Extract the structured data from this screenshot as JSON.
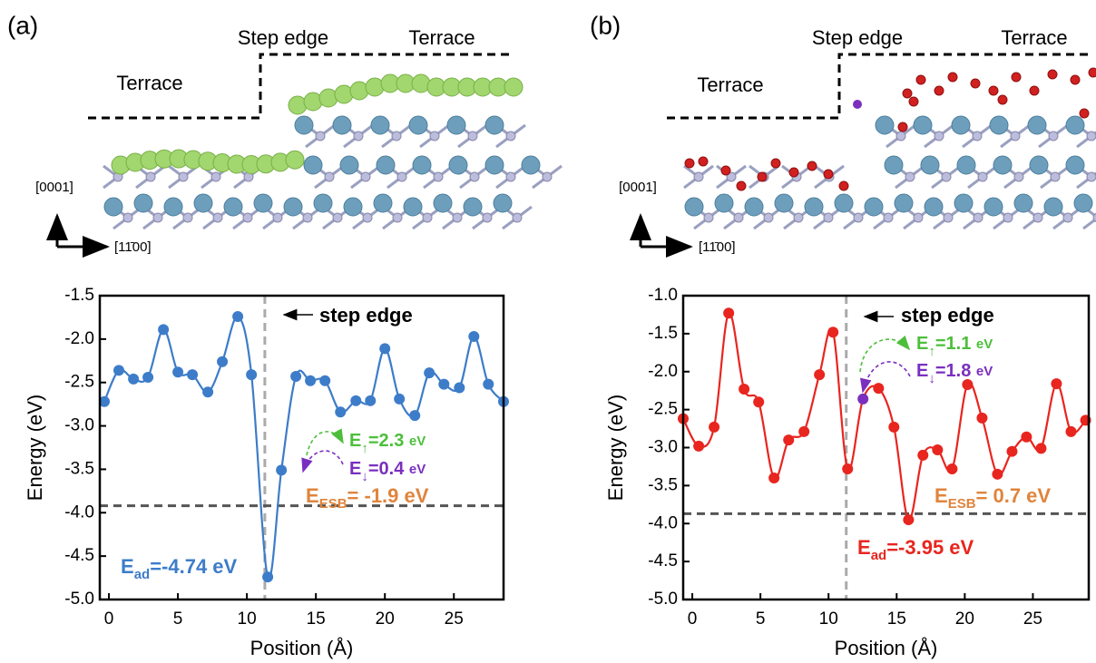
{
  "structure": [
    {
      "panel_label": "(a)",
      "terrace_low": "Terrace",
      "step": "Step edge",
      "terrace_high": "Terrace",
      "axis_up": "[0001]",
      "axis_right": "[11̄00]"
    },
    {
      "panel_label": "(b)",
      "terrace_low": "Terrace",
      "step": "Step edge",
      "terrace_high": "Terrace",
      "axis_up": "[0001]",
      "axis_right": "[11̄00]"
    }
  ],
  "chart_data": [
    {
      "type": "line",
      "xlabel": "Position (Å)",
      "ylabel": "Energy (eV)",
      "xlim": [
        -0.66,
        28.6
      ],
      "ylim": [
        -5,
        -1.5
      ],
      "xticks": [
        0,
        5,
        10,
        15,
        20,
        25
      ],
      "yticks": [
        {
          "value": -5,
          "label": "-5.0"
        },
        -4.5,
        {
          "value": -4,
          "label": "-4.0"
        },
        -3.5,
        {
          "value": -3,
          "label": "-3.0"
        },
        -2.5,
        {
          "value": -2,
          "label": "-2.0"
        },
        -1.5
      ],
      "series": [
        {
          "color": "#3d7cc9",
          "x": [
            -0.33,
            0.72,
            1.78,
            2.83,
            3.95,
            5.0,
            6.05,
            7.17,
            8.22,
            9.34,
            10.33,
            11.51,
            12.5,
            13.55,
            14.6,
            15.66,
            16.78,
            17.9,
            18.95,
            20.0,
            21.05,
            22.17,
            23.22,
            24.28,
            25.4,
            26.45,
            27.5,
            28.6
          ],
          "values": [
            -2.72,
            -2.36,
            -2.46,
            -2.44,
            -1.89,
            -2.38,
            -2.41,
            -2.61,
            -2.26,
            -1.74,
            -2.41,
            -4.74,
            -3.51,
            -2.43,
            -2.48,
            -2.48,
            -2.84,
            -2.71,
            -2.71,
            -2.11,
            -2.69,
            -2.88,
            -2.39,
            -2.52,
            -2.56,
            -1.97,
            -2.52,
            -2.72
          ]
        }
      ],
      "reference_lines": [
        {
          "axis": "x",
          "value": 11.3,
          "color": "#aaaaaa"
        },
        {
          "axis": "y",
          "value": -3.92,
          "color": "#555555"
        }
      ],
      "annotations": [
        {
          "color": "#000000",
          "bold": true,
          "parts": [
            {
              "text": "step edge"
            }
          ]
        },
        {
          "color": "#4cbf3a",
          "parts": [
            {
              "text": "E"
            },
            {
              "text": "↑",
              "sub": true
            },
            {
              "text": "=2.3 "
            },
            {
              "text": "eV",
              "small": true
            }
          ]
        },
        {
          "color": "#7a2fbf",
          "parts": [
            {
              "text": "E"
            },
            {
              "text": "↓",
              "sub": true
            },
            {
              "text": "=0.4 "
            },
            {
              "text": "eV",
              "small": true
            }
          ]
        },
        {
          "color": "#e0843c",
          "bold": true,
          "parts": [
            {
              "text": "E"
            },
            {
              "text": "ESB",
              "sub": true
            },
            {
              "text": "= -1.9 eV"
            }
          ]
        },
        {
          "color": "#3d7cc9",
          "bold": true,
          "parts": [
            {
              "text": "E"
            },
            {
              "text": "ad",
              "sub": true
            },
            {
              "text": "=-4.74 eV"
            }
          ]
        }
      ]
    },
    {
      "type": "line",
      "xlabel": "Position (Å)",
      "ylabel": "Energy (eV)",
      "xlim": [
        -0.67,
        29.1
      ],
      "ylim": [
        -5,
        -1
      ],
      "xticks": [
        0,
        5,
        10,
        15,
        20,
        25
      ],
      "yticks": [
        {
          "value": -5,
          "label": "-5.0"
        },
        -4.5,
        {
          "value": -4,
          "label": "-4.0"
        },
        -3.5,
        {
          "value": -3,
          "label": "-3.0"
        },
        -2.5,
        {
          "value": -2,
          "label": "-2.0"
        },
        -1.5,
        {
          "value": -1,
          "label": "-1.0"
        }
      ],
      "series": [
        {
          "color": "#e8251f",
          "highlight_index": 12,
          "highlight_color": "#7a2fbf",
          "x": [
            -0.67,
            0.47,
            1.6,
            2.67,
            3.8,
            4.87,
            6.0,
            7.07,
            8.2,
            9.33,
            10.33,
            11.4,
            12.53,
            13.67,
            14.8,
            15.87,
            16.93,
            18.0,
            19.07,
            20.2,
            21.27,
            22.4,
            23.47,
            24.53,
            25.6,
            26.73,
            27.8,
            28.87
          ],
          "values": [
            -2.62,
            -2.98,
            -2.73,
            -1.23,
            -2.23,
            -2.4,
            -3.4,
            -2.9,
            -2.79,
            -2.04,
            -1.48,
            -3.28,
            -2.36,
            -2.22,
            -2.73,
            -3.95,
            -3.1,
            -3.03,
            -3.28,
            -2.17,
            -2.61,
            -3.35,
            -3.05,
            -2.86,
            -3.01,
            -2.16,
            -2.79,
            -2.64
          ]
        }
      ],
      "reference_lines": [
        {
          "axis": "x",
          "value": 11.3,
          "color": "#aaaaaa"
        },
        {
          "axis": "y",
          "value": -3.87,
          "color": "#555555"
        }
      ],
      "annotations": [
        {
          "color": "#000000",
          "bold": true,
          "parts": [
            {
              "text": "step edge"
            }
          ]
        },
        {
          "color": "#4cbf3a",
          "parts": [
            {
              "text": "E"
            },
            {
              "text": "↑",
              "sub": true
            },
            {
              "text": "=1.1 "
            },
            {
              "text": "eV",
              "small": true
            }
          ]
        },
        {
          "color": "#7a2fbf",
          "parts": [
            {
              "text": "E"
            },
            {
              "text": "↓",
              "sub": true
            },
            {
              "text": "=1.8 "
            },
            {
              "text": "eV",
              "small": true
            }
          ]
        },
        {
          "color": "#e0843c",
          "bold": true,
          "parts": [
            {
              "text": "E"
            },
            {
              "text": "ESB",
              "sub": true
            },
            {
              "text": "= 0.7 eV"
            }
          ]
        },
        {
          "color": "#e8251f",
          "bold": true,
          "parts": [
            {
              "text": "E"
            },
            {
              "text": "ad",
              "sub": true
            },
            {
              "text": "=-3.95 eV"
            }
          ]
        }
      ]
    }
  ]
}
